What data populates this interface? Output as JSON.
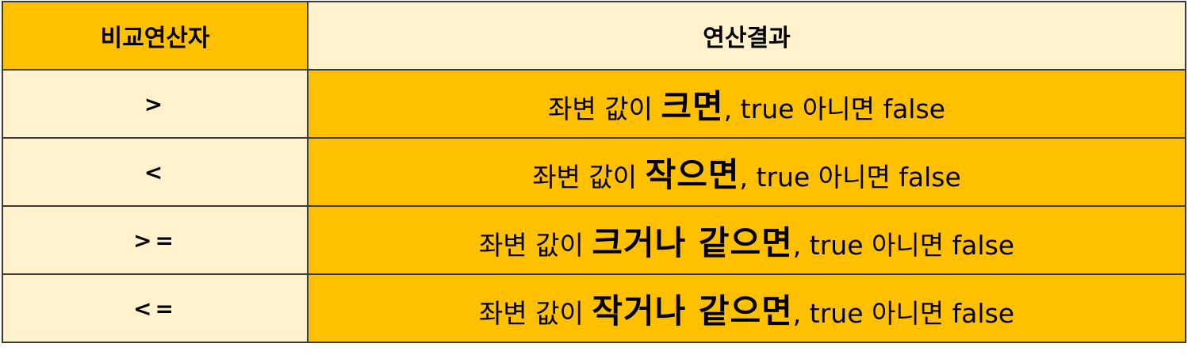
{
  "table": {
    "headers": {
      "operator": "비교연산자",
      "result": "연산결과"
    },
    "rows": [
      {
        "operator": ">",
        "prefix": "좌변 값이 ",
        "emphasis": "크면",
        "suffix": ", true 아니면 false"
      },
      {
        "operator": "<",
        "prefix": "좌변 값이 ",
        "emphasis": "작으면",
        "suffix": ", true 아니면 false"
      },
      {
        "operator": ">=",
        "prefix": "좌변 값이 ",
        "emphasis": "크거나 같으면",
        "suffix": ", true 아니면 false"
      },
      {
        "operator": "<=",
        "prefix": "좌변 값이 ",
        "emphasis": "작거나 같으면",
        "suffix": ", true 아니면 false"
      }
    ]
  },
  "colors": {
    "gold": "#FFC000",
    "cream": "#FFF2CC",
    "border": "#3a3a3a"
  }
}
